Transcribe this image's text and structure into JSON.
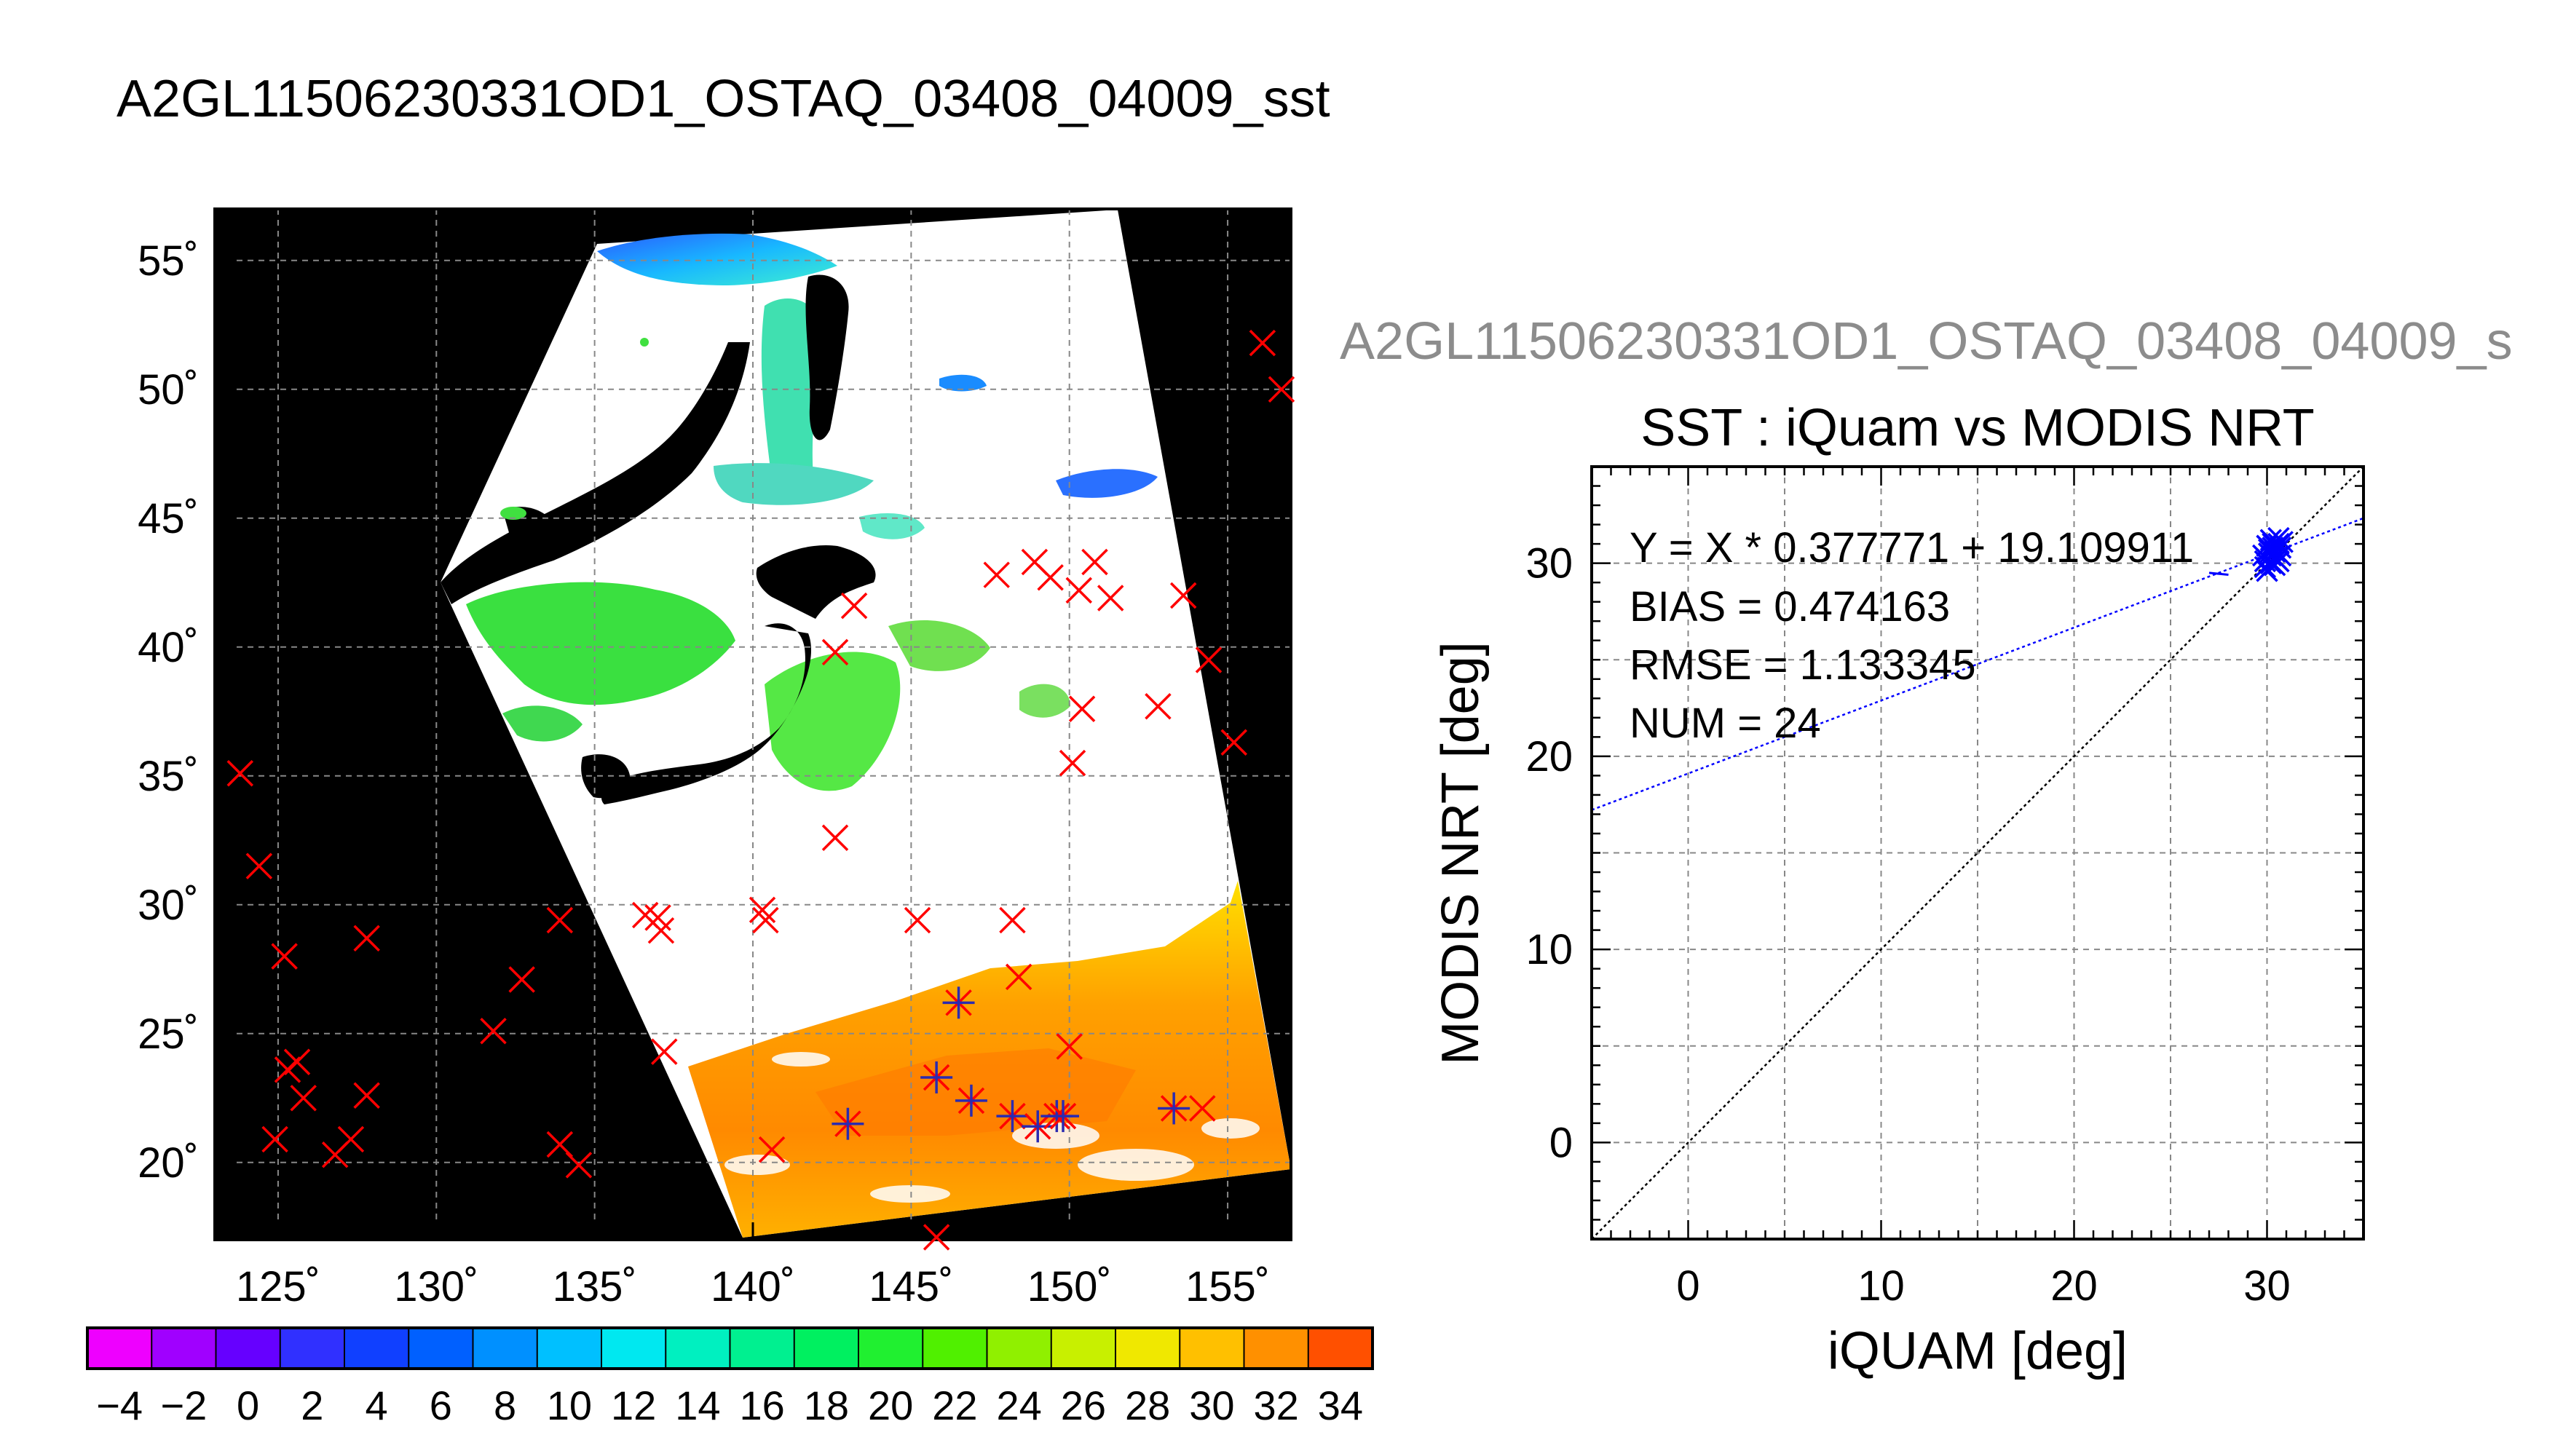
{
  "title": "A2GL11506230331OD1_OSTAQ_03408_04009_sst",
  "scatter_overtitle": "A2GL11506230331OD1_OSTAQ_03408_04009_s",
  "colors": {
    "marker_red": "#ff0000",
    "marker_blue": "#2b2bb0",
    "fit_line": "#0000ff",
    "identity_line": "#000000",
    "land": "#000000",
    "cloud": "#ffffff"
  },
  "chart_data": [
    {
      "type": "heatmap",
      "name": "sst-map",
      "xlim": [
        123,
        157
      ],
      "ylim": [
        17,
        57
      ],
      "x_ticks": [
        125,
        130,
        135,
        140,
        145,
        150,
        155
      ],
      "y_ticks": [
        20,
        25,
        30,
        35,
        40,
        45,
        50,
        55
      ],
      "x_tick_labels": [
        "125˚",
        "130˚",
        "135˚",
        "140˚",
        "145˚",
        "150˚",
        "155˚"
      ],
      "y_tick_labels": [
        "20˚",
        "25˚",
        "30˚",
        "35˚",
        "40˚",
        "45˚",
        "50˚",
        "55˚"
      ],
      "grid": true,
      "matchup_points_not_used": [
        [
          123.8,
          35.1
        ],
        [
          124.4,
          31.5
        ],
        [
          125.2,
          28.0
        ],
        [
          124.9,
          20.9
        ],
        [
          125.3,
          23.6
        ],
        [
          125.6,
          23.9
        ],
        [
          125.8,
          22.5
        ],
        [
          126.8,
          20.3
        ],
        [
          127.3,
          20.9
        ],
        [
          127.8,
          22.6
        ],
        [
          127.8,
          28.7
        ],
        [
          131.8,
          25.1
        ],
        [
          132.7,
          27.1
        ],
        [
          133.9,
          29.4
        ],
        [
          133.9,
          20.7
        ],
        [
          134.5,
          19.9
        ],
        [
          136.6,
          29.6
        ],
        [
          137.0,
          29.5
        ],
        [
          137.1,
          29.0
        ],
        [
          137.2,
          24.3
        ],
        [
          140.3,
          29.8
        ],
        [
          140.4,
          29.4
        ],
        [
          140.6,
          20.5
        ],
        [
          142.6,
          32.6
        ],
        [
          142.6,
          39.8
        ],
        [
          143.2,
          41.6
        ],
        [
          145.2,
          29.4
        ],
        [
          145.8,
          17.1
        ],
        [
          147.7,
          42.8
        ],
        [
          148.2,
          29.4
        ],
        [
          148.4,
          27.2
        ],
        [
          148.9,
          43.3
        ],
        [
          149.4,
          42.7
        ],
        [
          150.0,
          24.5
        ],
        [
          150.1,
          35.5
        ],
        [
          150.3,
          42.2
        ],
        [
          150.4,
          37.6
        ],
        [
          150.8,
          43.3
        ],
        [
          151.3,
          41.9
        ],
        [
          152.8,
          37.7
        ],
        [
          153.6,
          42.0
        ],
        [
          154.2,
          22.1
        ],
        [
          154.4,
          39.5
        ],
        [
          155.2,
          36.3
        ],
        [
          156.1,
          51.8
        ],
        [
          156.7,
          50.0
        ]
      ],
      "matchup_points_used": [
        [
          143.0,
          21.5
        ],
        [
          145.8,
          23.3
        ],
        [
          146.5,
          26.2
        ],
        [
          146.9,
          22.4
        ],
        [
          148.2,
          21.8
        ],
        [
          149.0,
          21.4
        ],
        [
          149.6,
          21.8
        ],
        [
          149.8,
          21.8
        ],
        [
          153.3,
          22.1
        ]
      ],
      "colorbar": {
        "min": -5,
        "max": 35,
        "tick_values": [
          -4,
          -2,
          0,
          2,
          4,
          6,
          8,
          10,
          12,
          14,
          16,
          18,
          20,
          22,
          24,
          26,
          28,
          30,
          32,
          34
        ],
        "tick_labels": [
          "−4",
          "−2",
          "0",
          "2",
          "4",
          "6",
          "8",
          "10",
          "12",
          "14",
          "16",
          "18",
          "20",
          "22",
          "24",
          "26",
          "28",
          "30",
          "32",
          "34"
        ]
      }
    },
    {
      "type": "scatter",
      "name": "iquam-vs-modis",
      "title": "SST : iQuam vs MODIS NRT",
      "xlabel": "iQUAM [deg]",
      "ylabel": "MODIS NRT [deg]",
      "xlim": [
        -5,
        35
      ],
      "ylim": [
        -5,
        35
      ],
      "x_ticks": [
        0,
        10,
        20,
        30
      ],
      "y_ticks": [
        0,
        10,
        20,
        30
      ],
      "grid": true,
      "fit": {
        "slope": 0.377771,
        "intercept": 19.109911
      },
      "stats": [
        "Y = X * 0.377771 + 19.109911",
        "BIAS = 0.474163",
        "RMSE = 1.133345",
        "NUM = 24"
      ],
      "points": [
        [
          29.9,
          29.8
        ],
        [
          30.0,
          30.2
        ],
        [
          30.1,
          30.5
        ],
        [
          30.2,
          30.0
        ],
        [
          30.3,
          30.8
        ],
        [
          30.4,
          30.3
        ],
        [
          30.5,
          30.6
        ],
        [
          30.6,
          31.0
        ],
        [
          30.7,
          30.4
        ],
        [
          30.8,
          31.1
        ],
        [
          29.8,
          30.4
        ],
        [
          30.0,
          30.9
        ],
        [
          30.2,
          31.2
        ],
        [
          30.4,
          29.9
        ],
        [
          30.6,
          30.1
        ],
        [
          30.1,
          30.7
        ],
        [
          30.3,
          31.0
        ],
        [
          30.5,
          30.2
        ],
        [
          29.9,
          30.1
        ],
        [
          30.7,
          30.8
        ],
        [
          30.0,
          29.6
        ],
        [
          30.2,
          30.4
        ],
        [
          30.4,
          30.6
        ],
        [
          30.6,
          31.3
        ]
      ],
      "curve_segment": [
        [
          27.0,
          29.5
        ],
        [
          28.0,
          29.4
        ]
      ]
    }
  ]
}
